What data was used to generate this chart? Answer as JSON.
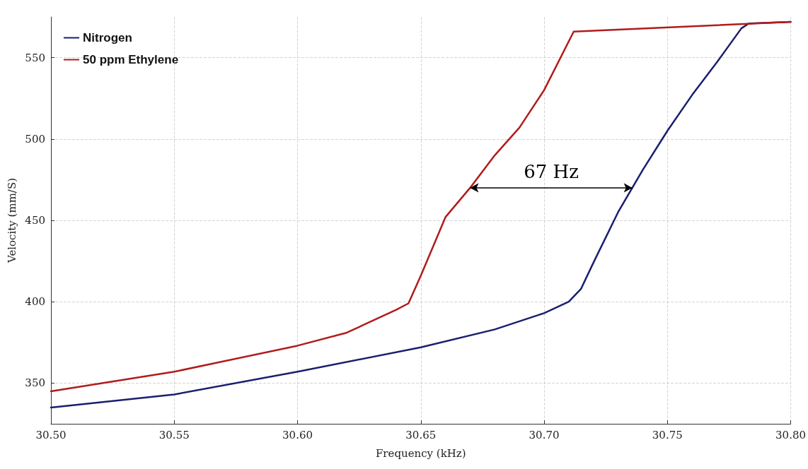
{
  "chart_data": {
    "type": "line",
    "xlabel": "Frequency (kHz)",
    "ylabel": "Velocity (mm/S)",
    "xlim": [
      30.5,
      30.8
    ],
    "xticks": [
      {
        "value": 30.5,
        "label": "30.50"
      },
      {
        "value": 30.55,
        "label": "30.55"
      },
      {
        "value": 30.6,
        "label": "30.60"
      },
      {
        "value": 30.65,
        "label": "30.65"
      },
      {
        "value": 30.7,
        "label": "30.70"
      },
      {
        "value": 30.75,
        "label": "30.75"
      },
      {
        "value": 30.8,
        "label": "30.80"
      }
    ],
    "ylim": [
      325,
      575
    ],
    "yticks": [
      350,
      400,
      450,
      500,
      550
    ],
    "grid": true,
    "legend": "top left",
    "marker": "none",
    "line_style": "solid",
    "annotations": [
      "67 Hz"
    ],
    "series": [
      {
        "name": "Nitrogen",
        "color": "#1a1f6e",
        "x": [
          30.5,
          30.55,
          30.6,
          30.65,
          30.68,
          30.7,
          30.71,
          30.715,
          30.72,
          30.73,
          30.74,
          30.75,
          30.76,
          30.77,
          30.78,
          30.783,
          30.8
        ],
        "values": [
          335,
          343,
          357,
          372,
          383,
          393,
          400,
          408,
          424,
          455,
          481,
          505,
          527,
          547,
          568,
          571,
          572
        ]
      },
      {
        "name": "50 ppm Ethylene",
        "color": "#b01c1c",
        "x": [
          30.5,
          30.55,
          30.6,
          30.62,
          30.64,
          30.645,
          30.65,
          30.66,
          30.67,
          30.68,
          30.69,
          30.7,
          30.712,
          30.8
        ],
        "values": [
          345,
          357,
          373,
          381,
          395,
          399,
          416,
          452,
          470,
          490,
          507,
          530,
          566,
          572
        ]
      }
    ]
  }
}
